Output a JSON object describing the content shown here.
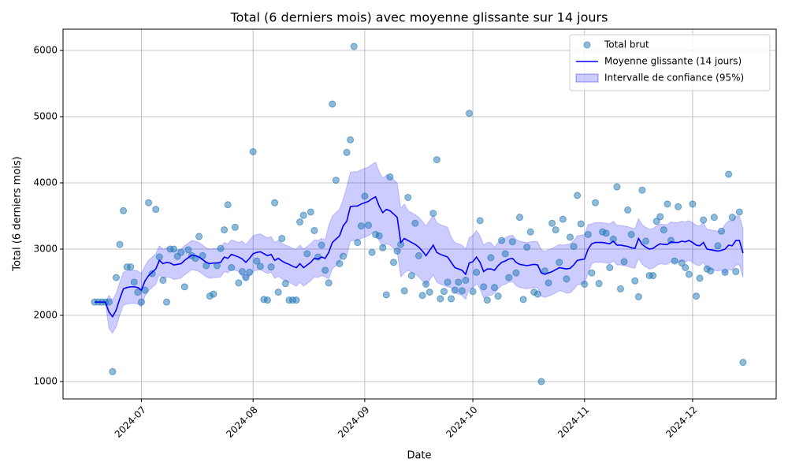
{
  "chart_data": {
    "type": "combo",
    "title": "Total (6 derniers mois) avec moyenne glissante sur 14 jours",
    "xlabel": "Date",
    "ylabel": "Total (6 derniers mois)",
    "xlim": [
      -8.75,
      189.2
    ],
    "xticks": [
      {
        "value": 13,
        "label": "2024-07"
      },
      {
        "value": 44,
        "label": "2024-08"
      },
      {
        "value": 75,
        "label": "2024-09"
      },
      {
        "value": 105,
        "label": "2024-10"
      },
      {
        "value": 136,
        "label": "2024-11"
      },
      {
        "value": 166,
        "label": "2024-12"
      }
    ],
    "ylim": [
      738,
      6321
    ],
    "yticks": [
      1000,
      2000,
      3000,
      4000,
      5000,
      6000
    ],
    "grid": true,
    "legend": "upper right",
    "series": [
      {
        "name": "Total brut",
        "type": "scatter",
        "color": "#1f77b4",
        "values": [
          2200,
          2200,
          2200,
          2200,
          2200,
          1150,
          2570,
          3070,
          3580,
          2730,
          2730,
          2500,
          2350,
          2200,
          2380,
          3700,
          2630,
          3600,
          2880,
          2530,
          2200,
          3000,
          3000,
          2890,
          2950,
          2430,
          2990,
          2900,
          2860,
          3190,
          2900,
          2750,
          2290,
          2320,
          2750,
          3010,
          3290,
          3670,
          2720,
          3330,
          2490,
          2660,
          2570,
          2650,
          4470,
          2820,
          2740,
          2240,
          2230,
          2730,
          3700,
          2350,
          3160,
          2480,
          2230,
          2230,
          2230,
          3410,
          3510,
          2930,
          3560,
          3280,
          2880,
          3060,
          2680,
          2490,
          5190,
          4040,
          2780,
          2890,
          4460,
          4650,
          6060,
          3100,
          3350,
          3800,
          3360,
          2950,
          3220,
          3200,
          3020,
          2310,
          4090,
          2800,
          2970,
          3070,
          2370,
          3780,
          2600,
          3390,
          2900,
          2300,
          2470,
          2350,
          3540,
          4350,
          2250,
          2360,
          2500,
          2250,
          2380,
          2500,
          2370,
          2530,
          5050,
          2360,
          2650,
          3430,
          2430,
          2230,
          2870,
          2420,
          2290,
          3130,
          2930,
          2570,
          3110,
          2640,
          3480,
          2240,
          3030,
          3260,
          2350,
          2320,
          1000,
          2670,
          2490,
          3390,
          3290,
          2800,
          3450,
          2550,
          3180,
          3040,
          3810,
          3380,
          2470,
          3220,
          2640,
          3700,
          2480,
          3260,
          3240,
          2720,
          3150,
          3940,
          2400,
          2810,
          3590,
          3220,
          2520,
          2280,
          3890,
          3120,
          2600,
          2600,
          3420,
          3490,
          3290,
          3680,
          3130,
          2820,
          3640,
          2790,
          2720,
          2620,
          3680,
          2290,
          2560,
          3440,
          2700,
          2670,
          3480,
          3050,
          3270,
          2650,
          4130,
          3480,
          2660,
          3560,
          1290
        ]
      },
      {
        "name": "Moyenne glissante (14 jours)",
        "type": "line",
        "color": "#0000ff",
        "values": [
          2200,
          2200,
          2200,
          2200,
          2050,
          1980,
          2080,
          2250,
          2400,
          2420,
          2430,
          2430,
          2420,
          2380,
          2520,
          2600,
          2650,
          2700,
          2830,
          2780,
          2800,
          2790,
          2760,
          2770,
          2780,
          2830,
          2870,
          2910,
          2900,
          2880,
          2840,
          2800,
          2780,
          2790,
          2790,
          2800,
          2880,
          2860,
          2920,
          2900,
          2880,
          2850,
          2800,
          2860,
          2930,
          2950,
          2960,
          2930,
          2900,
          2920,
          2830,
          2860,
          2820,
          2790,
          2770,
          2740,
          2720,
          2780,
          2720,
          2760,
          2800,
          2860,
          2850,
          2880,
          2860,
          2950,
          3100,
          3150,
          3200,
          3350,
          3420,
          3640,
          3650,
          3650,
          3680,
          3700,
          3720,
          3760,
          3790,
          3650,
          3550,
          3600,
          3580,
          3530,
          3480,
          3100,
          3160,
          3130,
          3100,
          3070,
          3030,
          2970,
          2900,
          2980,
          3060,
          2950,
          2920,
          2900,
          2880,
          2800,
          2720,
          2700,
          2680,
          2620,
          2790,
          2810,
          2880,
          2800,
          2660,
          2700,
          2700,
          2680,
          2750,
          2800,
          2820,
          2850,
          2860,
          2800,
          2770,
          2760,
          2750,
          2760,
          2770,
          2760,
          2640,
          2620,
          2640,
          2660,
          2690,
          2720,
          2710,
          2700,
          2710,
          2760,
          2830,
          2840,
          2850,
          3000,
          3080,
          3100,
          3100,
          3100,
          3090,
          3080,
          3120,
          3060,
          3060,
          3050,
          3040,
          3020,
          3010,
          3160,
          3070,
          3030,
          3000,
          3010,
          3050,
          3080,
          3070,
          3070,
          3110,
          3100,
          3100,
          3120,
          3110,
          3130,
          3100,
          3060,
          3050,
          3100,
          3000,
          2990,
          2980,
          2970,
          2980,
          3000,
          3060,
          3050,
          3130,
          3130,
          2940
        ]
      },
      {
        "name": "Intervalle de confiance (95%)",
        "type": "band",
        "color": "#0000ff",
        "lower": [
          2200,
          2200,
          2200,
          2200,
          1800,
          1730,
          1830,
          2000,
          2150,
          2170,
          2180,
          2180,
          2170,
          2130,
          2290,
          2370,
          2420,
          2470,
          2610,
          2560,
          2580,
          2570,
          2540,
          2550,
          2560,
          2610,
          2650,
          2690,
          2680,
          2660,
          2620,
          2580,
          2560,
          2570,
          2570,
          2580,
          2660,
          2640,
          2700,
          2680,
          2660,
          2580,
          2530,
          2590,
          2660,
          2680,
          2690,
          2660,
          2630,
          2650,
          2560,
          2590,
          2550,
          2520,
          2500,
          2470,
          2440,
          2500,
          2440,
          2480,
          2520,
          2580,
          2570,
          2600,
          2580,
          2550,
          2700,
          2750,
          2800,
          2950,
          2900,
          3120,
          3130,
          3130,
          3160,
          3180,
          3200,
          3240,
          3270,
          3130,
          3030,
          3080,
          3060,
          3010,
          2960,
          2580,
          2640,
          2680,
          2650,
          2620,
          2580,
          2520,
          2450,
          2530,
          2610,
          2500,
          2470,
          2450,
          2430,
          2420,
          2340,
          2320,
          2300,
          2240,
          2410,
          2410,
          2480,
          2400,
          2260,
          2300,
          2300,
          2330,
          2400,
          2450,
          2470,
          2500,
          2510,
          2450,
          2420,
          2410,
          2400,
          2410,
          2420,
          2410,
          2290,
          2270,
          2290,
          2310,
          2340,
          2370,
          2360,
          2330,
          2340,
          2390,
          2460,
          2470,
          2480,
          2630,
          2780,
          2800,
          2800,
          2800,
          2790,
          2780,
          2820,
          2760,
          2760,
          2750,
          2740,
          2720,
          2710,
          2860,
          2770,
          2730,
          2700,
          2710,
          2750,
          2780,
          2770,
          2770,
          2810,
          2800,
          2800,
          2820,
          2810,
          2830,
          2800,
          2760,
          2750,
          2800,
          2700,
          2690,
          2680,
          2670,
          2680,
          2630,
          2690,
          2680,
          2760,
          2760,
          2570
        ],
        "upper": [
          2200,
          2200,
          2200,
          2200,
          2300,
          2230,
          2330,
          2500,
          2650,
          2670,
          2680,
          2680,
          2670,
          2630,
          2750,
          2830,
          2880,
          2930,
          3050,
          3000,
          3020,
          3010,
          2980,
          2990,
          3000,
          3050,
          3090,
          3130,
          3120,
          3100,
          3060,
          3020,
          3000,
          3010,
          3010,
          3020,
          3100,
          3080,
          3140,
          3120,
          3100,
          3120,
          3070,
          3130,
          3200,
          3220,
          3230,
          3200,
          3170,
          3190,
          3100,
          3130,
          3090,
          3060,
          3040,
          3010,
          3000,
          3060,
          3000,
          3040,
          3080,
          3140,
          3130,
          3160,
          3140,
          3350,
          3500,
          3550,
          3600,
          3750,
          3940,
          4160,
          4170,
          4170,
          4200,
          4220,
          4240,
          4280,
          4310,
          4170,
          4070,
          4120,
          4100,
          4050,
          4000,
          3620,
          3680,
          3580,
          3550,
          3520,
          3480,
          3420,
          3350,
          3430,
          3510,
          3400,
          3370,
          3350,
          3330,
          3180,
          3100,
          3080,
          3060,
          3000,
          3170,
          3210,
          3280,
          3200,
          3060,
          3100,
          3100,
          3030,
          3100,
          3150,
          3170,
          3200,
          3210,
          3150,
          3120,
          3110,
          3100,
          3110,
          3120,
          3110,
          2990,
          2970,
          2990,
          3010,
          3040,
          3070,
          3060,
          3070,
          3080,
          3130,
          3200,
          3210,
          3220,
          3370,
          3380,
          3400,
          3400,
          3400,
          3390,
          3380,
          3420,
          3360,
          3360,
          3350,
          3340,
          3320,
          3310,
          3460,
          3370,
          3330,
          3300,
          3310,
          3350,
          3380,
          3370,
          3370,
          3410,
          3400,
          3400,
          3420,
          3410,
          3430,
          3400,
          3360,
          3350,
          3400,
          3300,
          3290,
          3280,
          3270,
          3280,
          3370,
          3430,
          3420,
          3500,
          3500,
          3310
        ]
      }
    ]
  }
}
